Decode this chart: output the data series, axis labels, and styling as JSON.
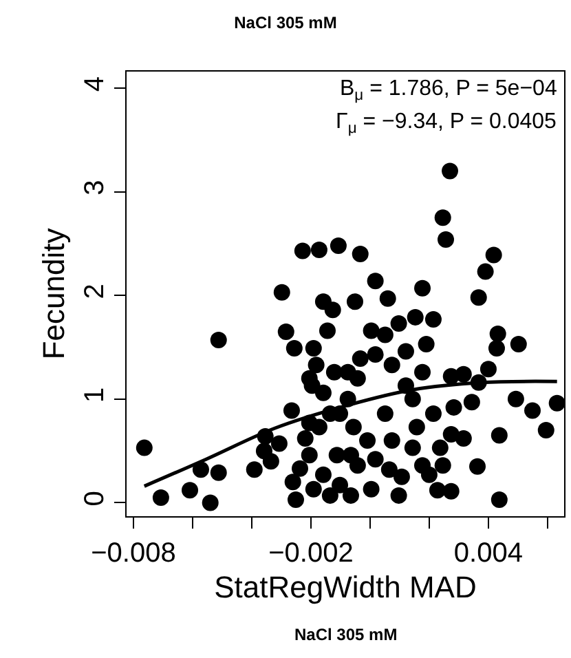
{
  "chart_data": {
    "type": "scatter",
    "title": "NaCl 305 mM",
    "xlabel": "StatRegWidth MAD",
    "ylabel": "Fecundity",
    "annotations": [
      "B$_{μ}$ = 1.786, P = 5e−04",
      "Γ$_{μ}$ = −9.34, P = 0.0405",
      "NaCl 305 mM"
    ],
    "xlim": [
      -0.00823,
      0.00656
    ],
    "ylim": [
      -0.13,
      4.16
    ],
    "xticks": [
      {
        "value": -0.008,
        "label": "−0.008"
      },
      {
        "value": -0.006,
        "label": null
      },
      {
        "value": -0.004,
        "label": null
      },
      {
        "value": -0.002,
        "label": "−0.002"
      },
      {
        "value": 0,
        "label": null
      },
      {
        "value": 0.002,
        "label": null
      },
      {
        "value": 0.004,
        "label": "0.004"
      },
      {
        "value": 0.006,
        "label": null
      }
    ],
    "yticks": [
      0,
      1,
      2,
      3,
      4
    ],
    "series": [
      {
        "color": "#000000",
        "marker": "circle",
        "x": [
          -0.00763,
          -0.00707,
          -0.00609,
          -0.0054,
          -0.00572,
          -0.00512,
          -0.00512,
          -0.00391,
          -0.00354,
          -0.00358,
          -0.00307,
          -0.00335,
          -0.00298,
          -0.00284,
          -0.00256,
          -0.00158,
          -0.00265,
          -0.00219,
          -0.00251,
          -0.00261,
          -0.00205,
          -0.00191,
          -0.00196,
          0.0027,
          0.00246,
          0.00256,
          0.00418,
          0.0039,
          -0.00107,
          -0.00033,
          0.00018,
          0.00177,
          0.0006,
          -0.00051,
          0.00367,
          4e-05,
          0.00051,
          0.00097,
          0.00153,
          0.00214,
          0.00121,
          0.0019,
          0.00432,
          0.00502,
          0.00428,
          0.00018,
          0.00177,
          0.00274,
          0.00316,
          0.004,
          0.00367,
          0.00121,
          0.00493,
          0.00549,
          0.00632,
          0.00595,
          0.00437,
          0.00344,
          0.00283,
          0.00274,
          0.00237,
          0.00316,
          0.00246,
          0.00158,
          0.00074,
          0.00065,
          0.00107,
          0.00177,
          0.002,
          0.00228,
          0.00274,
          0.00363,
          0.00437,
          0.00018,
          -0.00042,
          -0.00102,
          -0.00065,
          -9e-05,
          -0.00075,
          -0.00121,
          -0.00042,
          -0.00102,
          -0.00056,
          0.00144,
          -0.00205,
          -0.00182,
          -0.00158,
          -0.00135,
          -0.00172,
          -0.00205,
          -0.00158,
          -0.00191,
          -0.00135,
          -0.00237,
          -0.00112,
          -0.00144,
          -0.00126,
          -0.00228,
          -0.00172,
          -0.00033,
          0.00051,
          4e-05,
          0.00097,
          -0.00065,
          0.00214,
          0.00144,
          -0.00075,
          0.00074
        ],
        "values": [
          0.53,
          0.05,
          0.12,
          0.0,
          0.32,
          0.29,
          1.57,
          0.32,
          0.64,
          0.5,
          0.57,
          0.4,
          2.03,
          1.65,
          1.49,
          1.94,
          0.89,
          0.62,
          0.03,
          0.2,
          0.77,
          1.49,
          1.13,
          3.2,
          2.75,
          2.54,
          2.39,
          2.23,
          2.48,
          2.4,
          2.14,
          2.07,
          1.97,
          1.94,
          1.98,
          1.66,
          1.62,
          1.73,
          1.79,
          1.77,
          1.46,
          1.53,
          1.63,
          1.53,
          1.49,
          1.43,
          1.26,
          1.22,
          1.24,
          1.29,
          1.16,
          1.13,
          1.0,
          0.89,
          0.96,
          0.7,
          0.65,
          0.97,
          0.92,
          0.66,
          0.53,
          0.62,
          0.36,
          0.73,
          0.6,
          0.32,
          0.25,
          0.36,
          0.27,
          0.12,
          0.11,
          0.35,
          0.03,
          0.42,
          0.36,
          0.17,
          0.46,
          0.6,
          1.0,
          1.26,
          1.2,
          0.86,
          0.73,
          1.0,
          1.2,
          1.33,
          1.06,
          0.86,
          0.73,
          0.46,
          0.27,
          0.13,
          0.07,
          0.33,
          0.46,
          1.66,
          1.86,
          2.43,
          2.44,
          1.39,
          0.86,
          0.13,
          0.07,
          0.07,
          0.86,
          0.53,
          1.26,
          1.33
        ]
      },
      {
        "type": "line",
        "color": "#000000",
        "line_style": "solid",
        "marker": "none",
        "x": [
          -0.00763,
          -0.00554,
          -0.00321,
          -0.00089,
          0.00144,
          0.00376,
          0.00632
        ],
        "values": [
          0.16,
          0.42,
          0.72,
          0.93,
          1.09,
          1.16,
          1.17
        ]
      }
    ]
  }
}
